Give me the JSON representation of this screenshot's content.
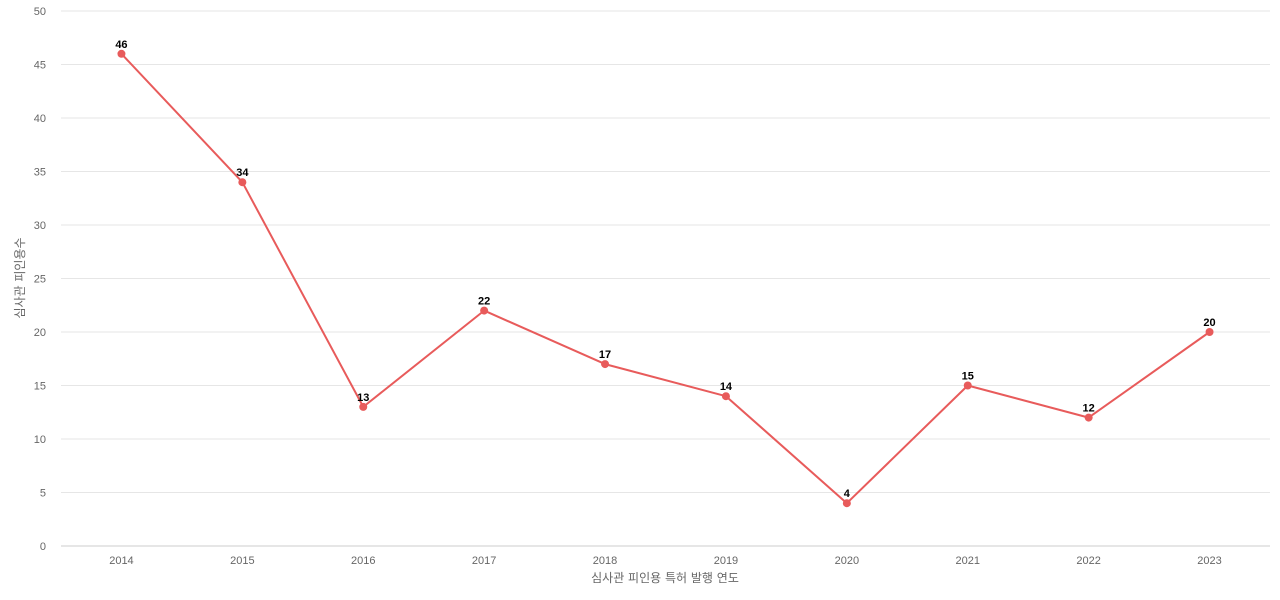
{
  "chart_data": {
    "type": "line",
    "title": "",
    "xlabel": "심사관 피인용 특허 발행 연도",
    "ylabel": "심사관 피인용수",
    "categories": [
      "2014",
      "2015",
      "2016",
      "2017",
      "2018",
      "2019",
      "2020",
      "2021",
      "2022",
      "2023"
    ],
    "series": [
      {
        "values": [
          46,
          34,
          13,
          22,
          17,
          14,
          4,
          15,
          12,
          20
        ],
        "color": "#e85b5b"
      }
    ],
    "ylim": [
      0,
      50
    ],
    "yticks": [
      "0",
      "5",
      "10",
      "15",
      "20",
      "25",
      "30",
      "35",
      "40",
      "45",
      "50"
    ],
    "grid": true,
    "data_labels": true
  }
}
